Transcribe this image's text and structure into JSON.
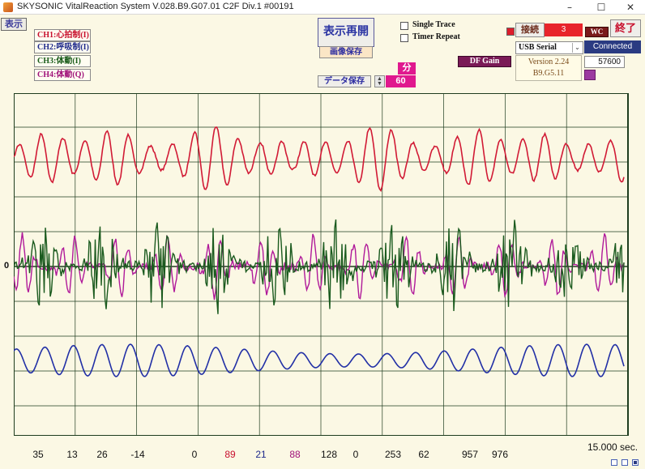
{
  "window": {
    "title": "SKYSONIC VitalReaction System V.028.B9.G07.01 C2F Div.1 #00191",
    "min_glyph": "–",
    "max_glyph": "☐",
    "close_glyph": "✕"
  },
  "left_panel": {
    "display_label": "表示",
    "channels": [
      {
        "label": "CH1:心拍制(I)",
        "color": "#c8102e"
      },
      {
        "label": "CH2:呼吸制(I)",
        "color": "#1f2a8c"
      },
      {
        "label": "CH3:体動(I)",
        "color": "#1a5c1a"
      },
      {
        "label": "CH4:体動(Q)",
        "color": "#a0127a"
      }
    ]
  },
  "toolbar": {
    "redisplay_label": "表示再開",
    "save_image_label": "画像保存",
    "save_data_label": "データ保存",
    "minutes_unit": "分",
    "minutes_value": "60",
    "stepper_up": "▲",
    "stepper_down": "▼",
    "single_trace_label": "Single Trace",
    "timer_repeat_label": "Timer Repeat"
  },
  "connection": {
    "connect_label": "接続",
    "port_value": "3",
    "wc_label": "WC",
    "exit_label": "終了",
    "serial_label": "USB Serial",
    "serial_arrow": "⌄",
    "status": "Connected",
    "version_line1": "Version 2.24",
    "version_line2": "B9.G5.11",
    "df_gain_label": "DF Gain",
    "baud_rate": "57600"
  },
  "plot": {
    "zero_label": "0",
    "colors": {
      "background": "#fbf8e4",
      "grid": "#1f3d1f",
      "ch1": "#d11a35",
      "ch2": "#2230a6",
      "ch3": "#1a5a1e",
      "ch4": "#b0199a"
    }
  },
  "readouts": [
    {
      "value": "35",
      "color": "#111111"
    },
    {
      "value": "13",
      "color": "#111111"
    },
    {
      "value": "26",
      "color": "#111111"
    },
    {
      "value": "-14",
      "color": "#111111"
    },
    {
      "value": "0",
      "color": "#111111"
    },
    {
      "value": "89",
      "color": "#c8102e"
    },
    {
      "value": "21",
      "color": "#1f2a8c"
    },
    {
      "value": "88",
      "color": "#a0127a"
    },
    {
      "value": "128",
      "color": "#111111"
    },
    {
      "value": "0",
      "color": "#111111"
    },
    {
      "value": "253",
      "color": "#111111"
    },
    {
      "value": "62",
      "color": "#111111"
    },
    {
      "value": "957",
      "color": "#111111"
    },
    {
      "value": "976",
      "color": "#111111"
    }
  ],
  "time_window_label": "15.000 sec."
}
